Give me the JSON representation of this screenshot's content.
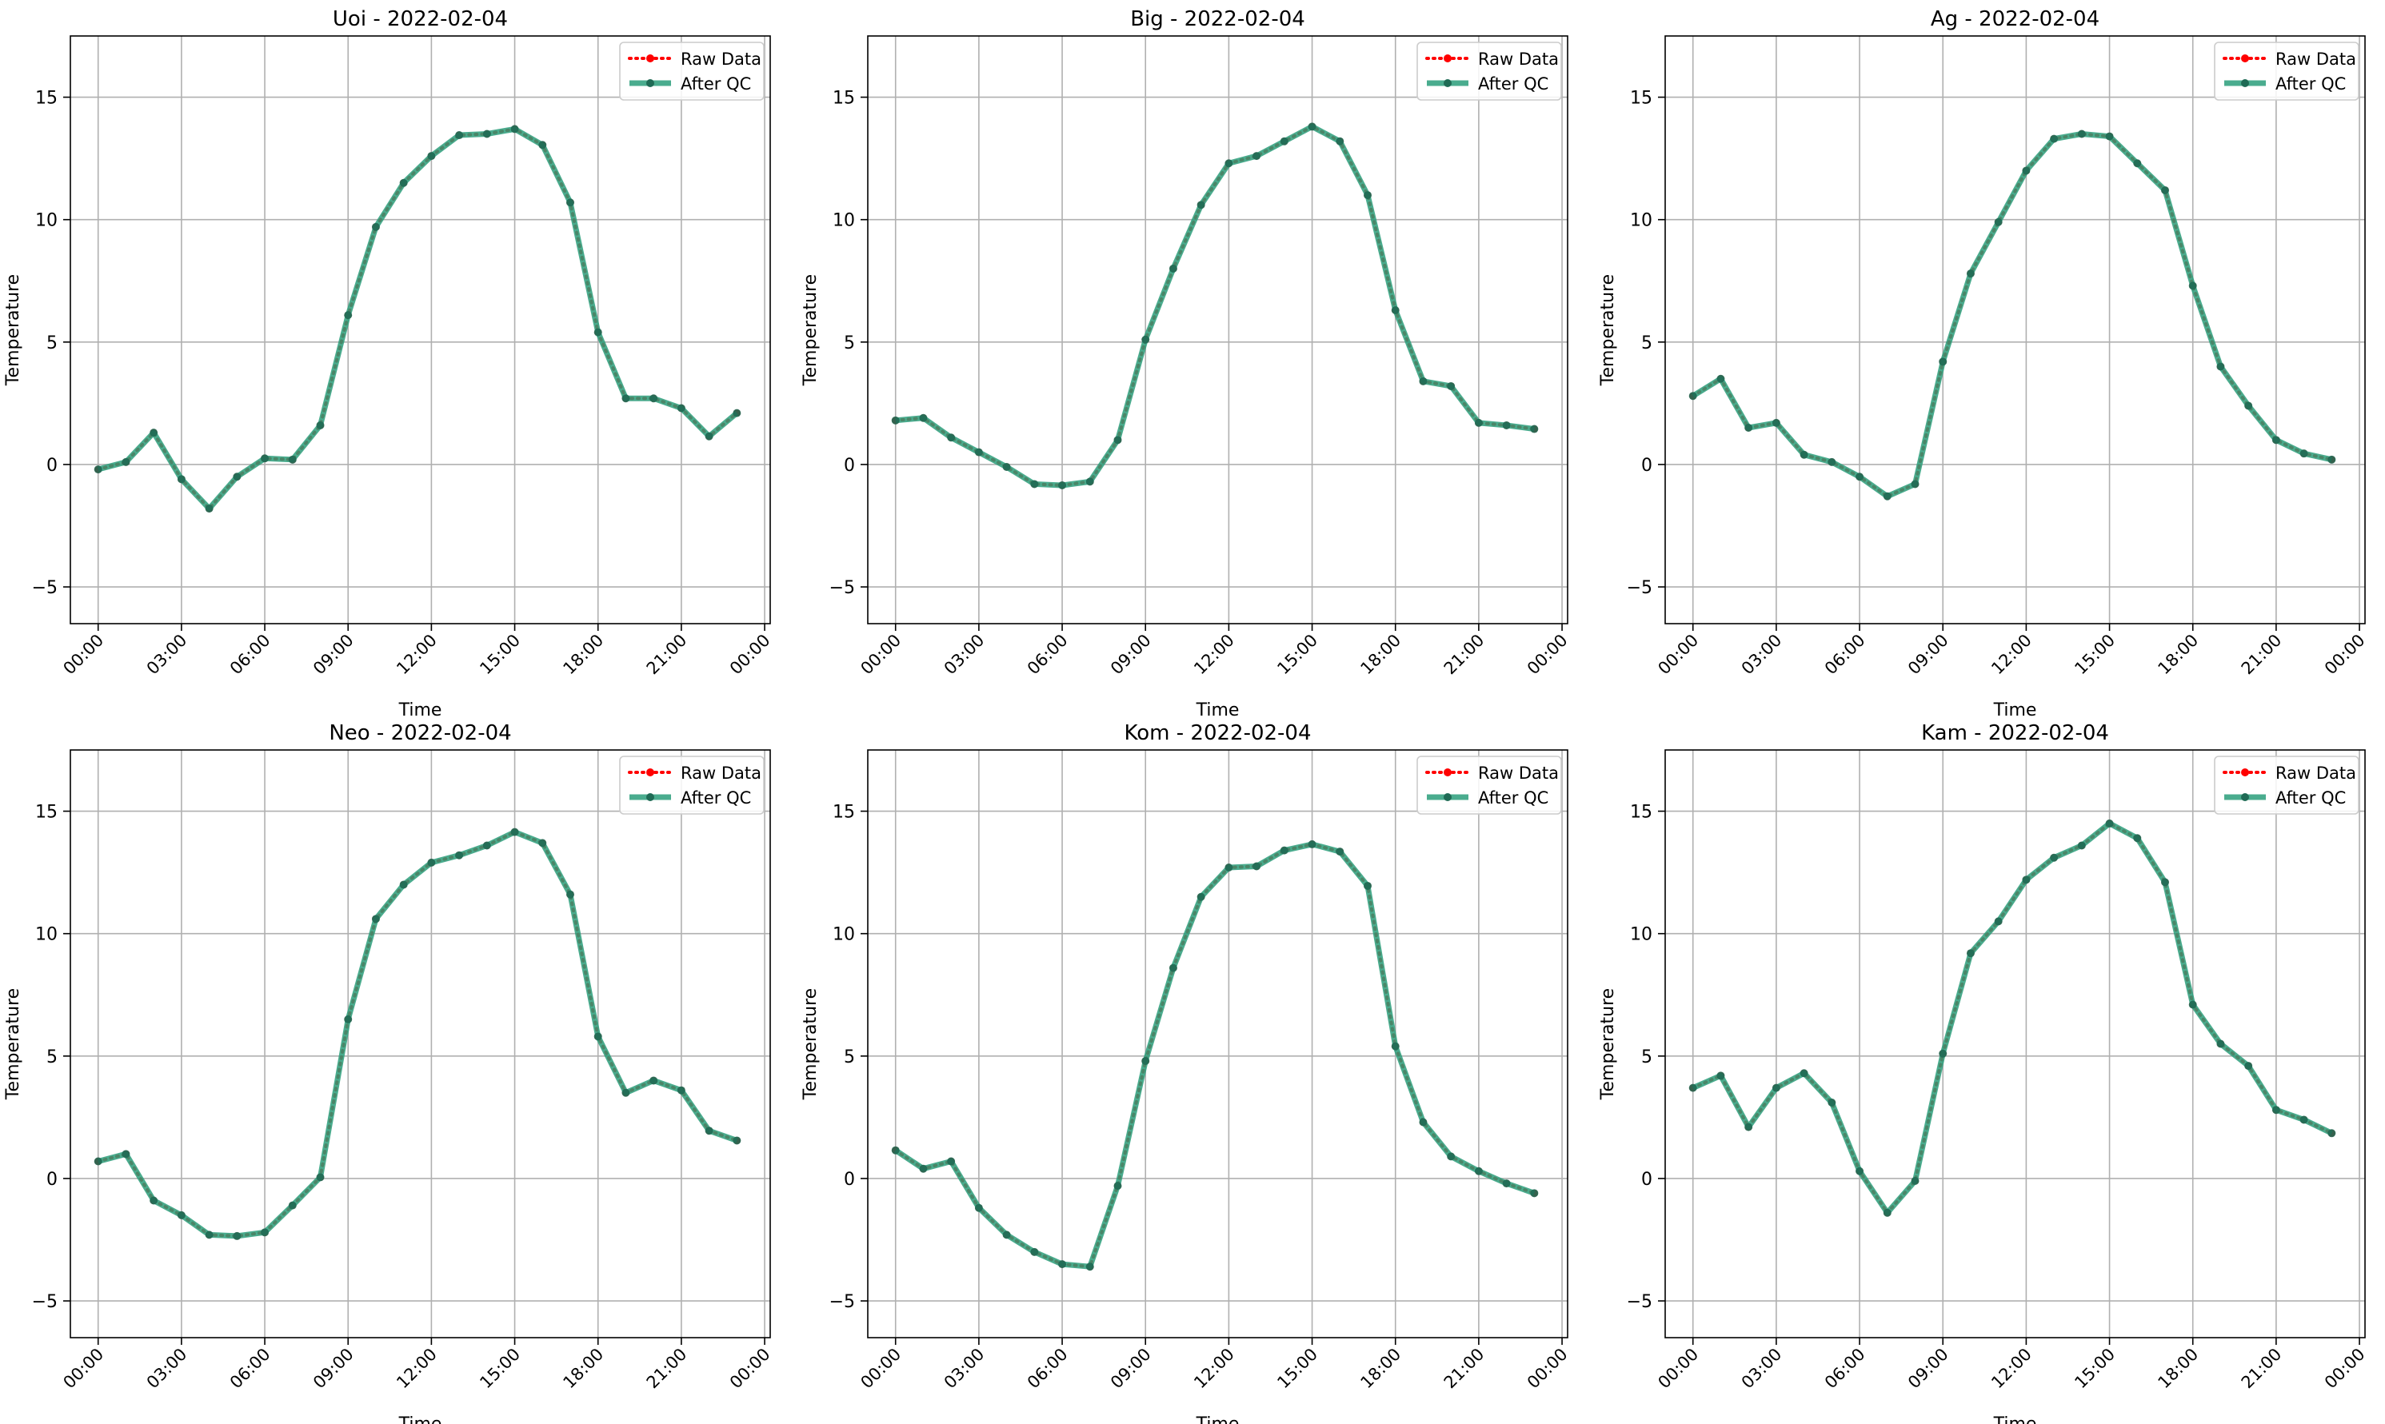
{
  "figure": {
    "layout": {
      "rows": 2,
      "cols": 3
    }
  },
  "chart_data": [
    {
      "type": "line",
      "title": "Uoi - 2022-02-04",
      "xlabel": "Time",
      "ylabel": "Temperature",
      "xlim": [
        -1.0,
        24.2
      ],
      "ylim": [
        -6.5,
        17.5
      ],
      "xticks": [
        0,
        3,
        6,
        9,
        12,
        15,
        18,
        21,
        24
      ],
      "xticklabels": [
        "00:00",
        "03:00",
        "06:00",
        "09:00",
        "12:00",
        "15:00",
        "18:00",
        "21:00",
        "00:00"
      ],
      "yticks": [
        -5,
        0,
        5,
        10,
        15
      ],
      "yticklabels": [
        "−5",
        "0",
        "5",
        "10",
        "15"
      ],
      "grid": true,
      "legend": "upper right",
      "x": [
        0,
        1,
        2,
        3,
        4,
        5,
        6,
        7,
        8,
        9,
        10,
        11,
        12,
        13,
        14,
        15,
        16,
        17,
        18,
        19,
        20,
        21,
        22,
        23
      ],
      "series": [
        {
          "name": "Raw Data",
          "color": "#ff0000",
          "style": "dotted",
          "values": [
            -0.2,
            0.1,
            1.3,
            -0.6,
            -1.8,
            -0.5,
            0.25,
            0.2,
            1.6,
            6.1,
            9.7,
            11.5,
            12.6,
            13.45,
            13.5,
            13.7,
            13.05,
            10.7,
            5.4,
            2.7,
            2.7,
            2.3,
            1.15,
            2.1
          ]
        },
        {
          "name": "After QC",
          "color": "#2a9d7a",
          "style": "solid",
          "values": [
            -0.2,
            0.1,
            1.3,
            -0.6,
            -1.8,
            -0.5,
            0.25,
            0.2,
            1.6,
            6.1,
            9.7,
            11.5,
            12.6,
            13.45,
            13.5,
            13.7,
            13.05,
            10.7,
            5.4,
            2.7,
            2.7,
            2.3,
            1.15,
            2.1
          ]
        }
      ]
    },
    {
      "type": "line",
      "title": "Big - 2022-02-04",
      "xlabel": "Time",
      "ylabel": "Temperature",
      "xlim": [
        -1.0,
        24.2
      ],
      "ylim": [
        -6.5,
        17.5
      ],
      "xticks": [
        0,
        3,
        6,
        9,
        12,
        15,
        18,
        21,
        24
      ],
      "xticklabels": [
        "00:00",
        "03:00",
        "06:00",
        "09:00",
        "12:00",
        "15:00",
        "18:00",
        "21:00",
        "00:00"
      ],
      "yticks": [
        -5,
        0,
        5,
        10,
        15
      ],
      "yticklabels": [
        "−5",
        "0",
        "5",
        "10",
        "15"
      ],
      "grid": true,
      "legend": "upper right",
      "x": [
        0,
        1,
        2,
        3,
        4,
        5,
        6,
        7,
        8,
        9,
        10,
        11,
        12,
        13,
        14,
        15,
        16,
        17,
        18,
        19,
        20,
        21,
        22,
        23
      ],
      "series": [
        {
          "name": "Raw Data",
          "color": "#ff0000",
          "style": "dotted",
          "values": [
            1.8,
            1.9,
            1.1,
            0.5,
            -0.1,
            -0.8,
            -0.85,
            -0.7,
            1.0,
            5.1,
            8.0,
            10.6,
            12.3,
            12.6,
            13.2,
            13.8,
            13.2,
            11.0,
            6.3,
            3.4,
            3.2,
            1.7,
            1.6,
            1.45
          ]
        },
        {
          "name": "After QC",
          "color": "#2a9d7a",
          "style": "solid",
          "values": [
            1.8,
            1.9,
            1.1,
            0.5,
            -0.1,
            -0.8,
            -0.85,
            -0.7,
            1.0,
            5.1,
            8.0,
            10.6,
            12.3,
            12.6,
            13.2,
            13.8,
            13.2,
            11.0,
            6.3,
            3.4,
            3.2,
            1.7,
            1.6,
            1.45
          ]
        }
      ]
    },
    {
      "type": "line",
      "title": "Ag - 2022-02-04",
      "xlabel": "Time",
      "ylabel": "Temperature",
      "xlim": [
        -1.0,
        24.2
      ],
      "ylim": [
        -6.5,
        17.5
      ],
      "xticks": [
        0,
        3,
        6,
        9,
        12,
        15,
        18,
        21,
        24
      ],
      "xticklabels": [
        "00:00",
        "03:00",
        "06:00",
        "09:00",
        "12:00",
        "15:00",
        "18:00",
        "21:00",
        "00:00"
      ],
      "yticks": [
        -5,
        0,
        5,
        10,
        15
      ],
      "yticklabels": [
        "−5",
        "0",
        "5",
        "10",
        "15"
      ],
      "grid": true,
      "legend": "upper right",
      "x": [
        0,
        1,
        2,
        3,
        4,
        5,
        6,
        7,
        8,
        9,
        10,
        11,
        12,
        13,
        14,
        15,
        16,
        17,
        18,
        19,
        20,
        21,
        22,
        23
      ],
      "series": [
        {
          "name": "Raw Data",
          "color": "#ff0000",
          "style": "dotted",
          "values": [
            2.8,
            3.5,
            1.5,
            1.7,
            0.4,
            0.1,
            -0.5,
            -1.3,
            -0.8,
            4.2,
            7.8,
            9.9,
            12.0,
            13.3,
            13.5,
            13.4,
            12.3,
            11.2,
            7.3,
            4.0,
            2.4,
            1.0,
            0.45,
            0.2
          ]
        },
        {
          "name": "After QC",
          "color": "#2a9d7a",
          "style": "solid",
          "values": [
            2.8,
            3.5,
            1.5,
            1.7,
            0.4,
            0.1,
            -0.5,
            -1.3,
            -0.8,
            4.2,
            7.8,
            9.9,
            12.0,
            13.3,
            13.5,
            13.4,
            12.3,
            11.2,
            7.3,
            4.0,
            2.4,
            1.0,
            0.45,
            0.2
          ]
        }
      ]
    },
    {
      "type": "line",
      "title": "Neo - 2022-02-04",
      "xlabel": "Time",
      "ylabel": "Temperature",
      "xlim": [
        -1.0,
        24.2
      ],
      "ylim": [
        -6.5,
        17.5
      ],
      "xticks": [
        0,
        3,
        6,
        9,
        12,
        15,
        18,
        21,
        24
      ],
      "xticklabels": [
        "00:00",
        "03:00",
        "06:00",
        "09:00",
        "12:00",
        "15:00",
        "18:00",
        "21:00",
        "00:00"
      ],
      "yticks": [
        -5,
        0,
        5,
        10,
        15
      ],
      "yticklabels": [
        "−5",
        "0",
        "5",
        "10",
        "15"
      ],
      "grid": true,
      "legend": "upper right",
      "x": [
        0,
        1,
        2,
        3,
        4,
        5,
        6,
        7,
        8,
        9,
        10,
        11,
        12,
        13,
        14,
        15,
        16,
        17,
        18,
        19,
        20,
        21,
        22,
        23
      ],
      "series": [
        {
          "name": "Raw Data",
          "color": "#ff0000",
          "style": "dotted",
          "values": [
            0.7,
            1.0,
            -0.9,
            -1.5,
            -2.3,
            -2.35,
            -2.2,
            -1.1,
            0.05,
            6.5,
            10.6,
            12.0,
            12.9,
            13.2,
            13.6,
            14.15,
            13.7,
            11.6,
            5.8,
            3.5,
            4.0,
            3.6,
            1.95,
            1.55
          ]
        },
        {
          "name": "After QC",
          "color": "#2a9d7a",
          "style": "solid",
          "values": [
            0.7,
            1.0,
            -0.9,
            -1.5,
            -2.3,
            -2.35,
            -2.2,
            -1.1,
            0.05,
            6.5,
            10.6,
            12.0,
            12.9,
            13.2,
            13.6,
            14.15,
            13.7,
            11.6,
            5.8,
            3.5,
            4.0,
            3.6,
            1.95,
            1.55
          ]
        }
      ]
    },
    {
      "type": "line",
      "title": "Kom - 2022-02-04",
      "xlabel": "Time",
      "ylabel": "Temperature",
      "xlim": [
        -1.0,
        24.2
      ],
      "ylim": [
        -6.5,
        17.5
      ],
      "xticks": [
        0,
        3,
        6,
        9,
        12,
        15,
        18,
        21,
        24
      ],
      "xticklabels": [
        "00:00",
        "03:00",
        "06:00",
        "09:00",
        "12:00",
        "15:00",
        "18:00",
        "21:00",
        "00:00"
      ],
      "yticks": [
        -5,
        0,
        5,
        10,
        15
      ],
      "yticklabels": [
        "−5",
        "0",
        "5",
        "10",
        "15"
      ],
      "grid": true,
      "legend": "upper right",
      "x": [
        0,
        1,
        2,
        3,
        4,
        5,
        6,
        7,
        8,
        9,
        10,
        11,
        12,
        13,
        14,
        15,
        16,
        17,
        18,
        19,
        20,
        21,
        22,
        23
      ],
      "series": [
        {
          "name": "Raw Data",
          "color": "#ff0000",
          "style": "dotted",
          "values": [
            1.15,
            0.4,
            0.7,
            -1.2,
            -2.3,
            -3.0,
            -3.5,
            -3.6,
            -0.3,
            4.8,
            8.6,
            11.5,
            12.7,
            12.75,
            13.4,
            13.65,
            13.35,
            11.95,
            5.4,
            2.3,
            0.9,
            0.3,
            -0.2,
            -0.6
          ]
        },
        {
          "name": "After QC",
          "color": "#2a9d7a",
          "style": "solid",
          "values": [
            1.15,
            0.4,
            0.7,
            -1.2,
            -2.3,
            -3.0,
            -3.5,
            -3.6,
            -0.3,
            4.8,
            8.6,
            11.5,
            12.7,
            12.75,
            13.4,
            13.65,
            13.35,
            11.95,
            5.4,
            2.3,
            0.9,
            0.3,
            -0.2,
            -0.6
          ]
        }
      ]
    },
    {
      "type": "line",
      "title": "Kam - 2022-02-04",
      "xlabel": "Time",
      "ylabel": "Temperature",
      "xlim": [
        -1.0,
        24.2
      ],
      "ylim": [
        -6.5,
        17.5
      ],
      "xticks": [
        0,
        3,
        6,
        9,
        12,
        15,
        18,
        21,
        24
      ],
      "xticklabels": [
        "00:00",
        "03:00",
        "06:00",
        "09:00",
        "12:00",
        "15:00",
        "18:00",
        "21:00",
        "00:00"
      ],
      "yticks": [
        -5,
        0,
        5,
        10,
        15
      ],
      "yticklabels": [
        "−5",
        "0",
        "5",
        "10",
        "15"
      ],
      "grid": true,
      "legend": "upper right",
      "x": [
        0,
        1,
        2,
        3,
        4,
        5,
        6,
        7,
        8,
        9,
        10,
        11,
        12,
        13,
        14,
        15,
        16,
        17,
        18,
        19,
        20,
        21,
        22,
        23
      ],
      "series": [
        {
          "name": "Raw Data",
          "color": "#ff0000",
          "style": "dotted",
          "values": [
            3.7,
            4.2,
            2.1,
            3.7,
            4.3,
            3.1,
            0.3,
            -1.4,
            -0.1,
            5.1,
            9.2,
            10.5,
            12.2,
            13.1,
            13.6,
            14.5,
            13.9,
            12.1,
            7.1,
            5.5,
            4.6,
            2.8,
            2.4,
            1.85
          ]
        },
        {
          "name": "After QC",
          "color": "#2a9d7a",
          "style": "solid",
          "values": [
            3.7,
            4.2,
            2.1,
            3.7,
            4.3,
            3.1,
            0.3,
            -1.4,
            -0.1,
            5.1,
            9.2,
            10.5,
            12.2,
            13.1,
            13.6,
            14.5,
            13.9,
            12.1,
            7.1,
            5.5,
            4.6,
            2.8,
            2.4,
            1.85
          ]
        }
      ]
    }
  ]
}
